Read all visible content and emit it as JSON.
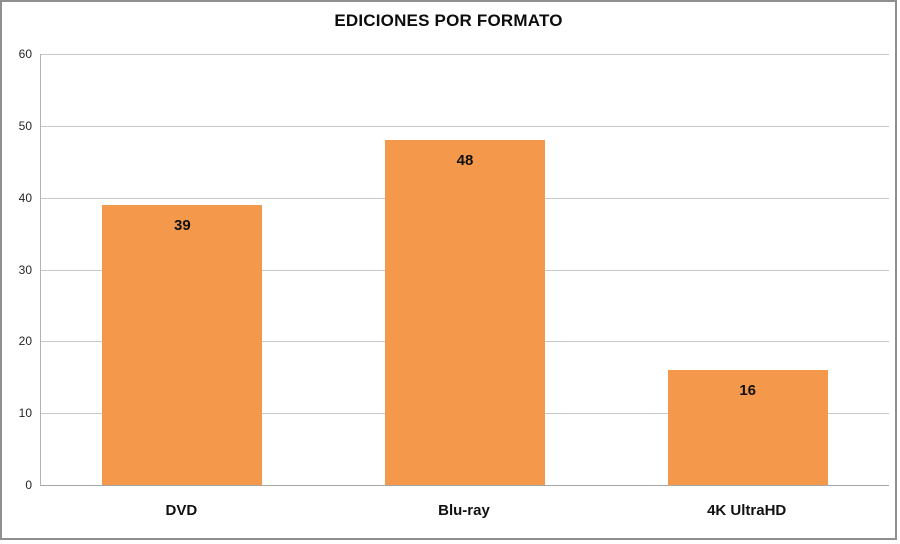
{
  "frame": {
    "border_color": "#8f8f8f",
    "background": "#ffffff"
  },
  "chart_data": {
    "type": "bar",
    "title": "EDICIONES POR FORMATO",
    "categories": [
      "DVD",
      "Blu-ray",
      "4K UltraHD"
    ],
    "values": [
      39,
      48,
      16
    ],
    "xlabel": "",
    "ylabel": "",
    "ylim": [
      0,
      60
    ],
    "yticks": [
      0,
      10,
      20,
      30,
      40,
      50,
      60
    ],
    "grid": "horizontal",
    "legend": "none",
    "bar_color": "#f4984c",
    "gridline_color": "#c8c8c8",
    "value_labels_inside_bars": true
  }
}
